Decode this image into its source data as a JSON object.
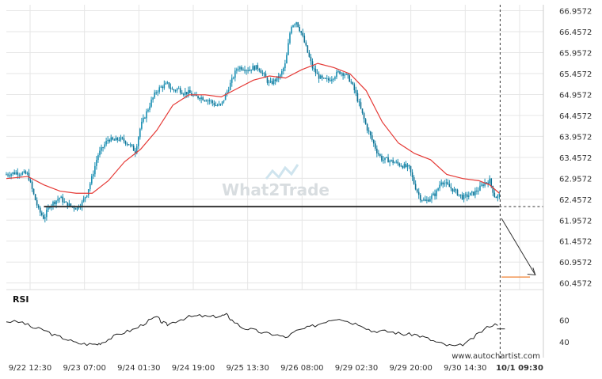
{
  "chart_data": {
    "type": "candlestick",
    "x_ticks": [
      "9/22 12:30",
      "9/23 07:00",
      "9/24 01:30",
      "9/24 19:00",
      "9/25 13:30",
      "9/26 08:00",
      "9/29 02:30",
      "9/29 20:00",
      "9/30 14:30",
      "10/1 09:30"
    ],
    "y_ticks": [
      "66.9572",
      "66.4572",
      "65.9572",
      "65.4572",
      "64.9572",
      "64.4572",
      "63.9572",
      "63.4572",
      "62.9572",
      "62.4572",
      "61.9572",
      "61.4572",
      "60.9572",
      "60.4572"
    ],
    "ylim": [
      60.3,
      67.1
    ],
    "price_path": [
      [
        0,
        63.05
      ],
      [
        2,
        63.1
      ],
      [
        4,
        63.05
      ],
      [
        5,
        62.6
      ],
      [
        6,
        62.2
      ],
      [
        7,
        62.0
      ],
      [
        8,
        62.3
      ],
      [
        9,
        62.4
      ],
      [
        10,
        62.5
      ],
      [
        11,
        62.35
      ],
      [
        12,
        62.3
      ],
      [
        13,
        62.25
      ],
      [
        14,
        62.35
      ],
      [
        15,
        62.6
      ],
      [
        16,
        63.0
      ],
      [
        17,
        63.5
      ],
      [
        18,
        63.7
      ],
      [
        19,
        63.9
      ],
      [
        20,
        63.85
      ],
      [
        21,
        63.9
      ],
      [
        22,
        63.85
      ],
      [
        23,
        63.75
      ],
      [
        24,
        63.6
      ],
      [
        25,
        64.2
      ],
      [
        26,
        64.5
      ],
      [
        27,
        64.8
      ],
      [
        28,
        65.05
      ],
      [
        29,
        65.15
      ],
      [
        30,
        65.2
      ],
      [
        31,
        65.05
      ],
      [
        32,
        65.1
      ],
      [
        33,
        65.0
      ],
      [
        34,
        65.0
      ],
      [
        35,
        64.9
      ],
      [
        36,
        64.9
      ],
      [
        37,
        64.85
      ],
      [
        38,
        64.8
      ],
      [
        39,
        64.7
      ],
      [
        40,
        64.7
      ],
      [
        41,
        65.0
      ],
      [
        42,
        65.3
      ],
      [
        43,
        65.6
      ],
      [
        44,
        65.6
      ],
      [
        45,
        65.55
      ],
      [
        46,
        65.6
      ],
      [
        47,
        65.6
      ],
      [
        48,
        65.4
      ],
      [
        49,
        65.2
      ],
      [
        50,
        65.3
      ],
      [
        51,
        65.4
      ],
      [
        52,
        65.7
      ],
      [
        53,
        66.6
      ],
      [
        54,
        66.7
      ],
      [
        55,
        66.4
      ],
      [
        56,
        66.0
      ],
      [
        57,
        65.6
      ],
      [
        58,
        65.4
      ],
      [
        59,
        65.3
      ],
      [
        60,
        65.3
      ],
      [
        61,
        65.4
      ],
      [
        62,
        65.5
      ],
      [
        63,
        65.45
      ],
      [
        64,
        65.3
      ],
      [
        65,
        65.0
      ],
      [
        66,
        64.6
      ],
      [
        67,
        64.2
      ],
      [
        68,
        63.9
      ],
      [
        69,
        63.6
      ],
      [
        70,
        63.4
      ],
      [
        71,
        63.4
      ],
      [
        72,
        63.35
      ],
      [
        73,
        63.3
      ],
      [
        74,
        63.25
      ],
      [
        75,
        63.2
      ],
      [
        76,
        62.8
      ],
      [
        77,
        62.5
      ],
      [
        78,
        62.4
      ],
      [
        79,
        62.5
      ],
      [
        80,
        62.6
      ],
      [
        81,
        62.9
      ],
      [
        82,
        62.8
      ],
      [
        83,
        62.7
      ],
      [
        84,
        62.6
      ],
      [
        85,
        62.5
      ],
      [
        86,
        62.55
      ],
      [
        87,
        62.6
      ],
      [
        88,
        62.7
      ],
      [
        89,
        62.85
      ],
      [
        90,
        62.9
      ],
      [
        91,
        62.5
      ],
      [
        91.8,
        62.55
      ]
    ],
    "moving_average": [
      [
        0,
        62.95
      ],
      [
        4,
        63.0
      ],
      [
        7,
        62.8
      ],
      [
        10,
        62.65
      ],
      [
        13,
        62.6
      ],
      [
        16,
        62.6
      ],
      [
        19,
        62.9
      ],
      [
        22,
        63.35
      ],
      [
        25,
        63.65
      ],
      [
        28,
        64.1
      ],
      [
        31,
        64.7
      ],
      [
        34,
        64.95
      ],
      [
        37,
        64.95
      ],
      [
        40,
        64.9
      ],
      [
        43,
        65.1
      ],
      [
        46,
        65.3
      ],
      [
        49,
        65.4
      ],
      [
        52,
        65.35
      ],
      [
        55,
        65.55
      ],
      [
        58,
        65.7
      ],
      [
        61,
        65.6
      ],
      [
        64,
        65.45
      ],
      [
        67,
        65.05
      ],
      [
        70,
        64.3
      ],
      [
        73,
        63.8
      ],
      [
        76,
        63.55
      ],
      [
        79,
        63.4
      ],
      [
        82,
        63.05
      ],
      [
        85,
        62.95
      ],
      [
        88,
        62.9
      ],
      [
        90,
        62.8
      ],
      [
        91.8,
        62.6
      ]
    ],
    "levels": [
      {
        "value": 62.28,
        "from": 7,
        "to": 91.8
      },
      {
        "value": 60.6,
        "from": 92.2,
        "to": 97.5
      }
    ],
    "projection": {
      "from": [
        92.2,
        62.0
      ],
      "to": [
        98.5,
        60.65
      ]
    },
    "x_max": 100,
    "rsi": {
      "label": "RSI",
      "ticks": [
        "60",
        "40"
      ],
      "ylim": [
        30,
        75
      ],
      "values": [
        [
          0,
          59
        ],
        [
          3,
          58
        ],
        [
          5,
          53
        ],
        [
          7,
          51
        ],
        [
          9,
          46
        ],
        [
          11,
          43
        ],
        [
          13,
          39
        ],
        [
          15,
          38
        ],
        [
          17,
          38
        ],
        [
          18,
          40
        ],
        [
          20,
          45
        ],
        [
          22,
          49
        ],
        [
          24,
          52
        ],
        [
          26,
          58
        ],
        [
          28,
          63
        ],
        [
          29,
          58
        ],
        [
          30,
          56
        ],
        [
          32,
          60
        ],
        [
          34,
          63
        ],
        [
          36,
          64
        ],
        [
          38,
          63
        ],
        [
          40,
          64
        ],
        [
          41,
          65
        ],
        [
          42,
          60
        ],
        [
          44,
          53
        ],
        [
          46,
          51
        ],
        [
          48,
          48
        ],
        [
          50,
          47
        ],
        [
          52,
          44
        ],
        [
          54,
          50
        ],
        [
          56,
          53
        ],
        [
          58,
          56
        ],
        [
          60,
          60
        ],
        [
          62,
          62
        ],
        [
          64,
          58
        ],
        [
          66,
          56
        ],
        [
          68,
          50
        ],
        [
          70,
          50
        ],
        [
          72,
          49
        ],
        [
          74,
          47
        ],
        [
          76,
          47
        ],
        [
          78,
          44
        ],
        [
          80,
          40
        ],
        [
          82,
          37
        ],
        [
          84,
          36
        ],
        [
          86,
          40
        ],
        [
          88,
          48
        ],
        [
          90,
          55
        ],
        [
          92,
          57
        ],
        [
          94,
          55
        ],
        [
          96,
          53
        ],
        [
          98,
          54
        ],
        [
          100,
          52
        ]
      ]
    }
  },
  "watermark": "What2Trade",
  "footer": {
    "url": "www.autochartist.com"
  },
  "colors": {
    "candles": "#1b8fb3",
    "moving_average": "#e53935",
    "level": "#333333",
    "target": "#f08030",
    "rsi": "#222222",
    "grid": "#e6e6e6"
  }
}
